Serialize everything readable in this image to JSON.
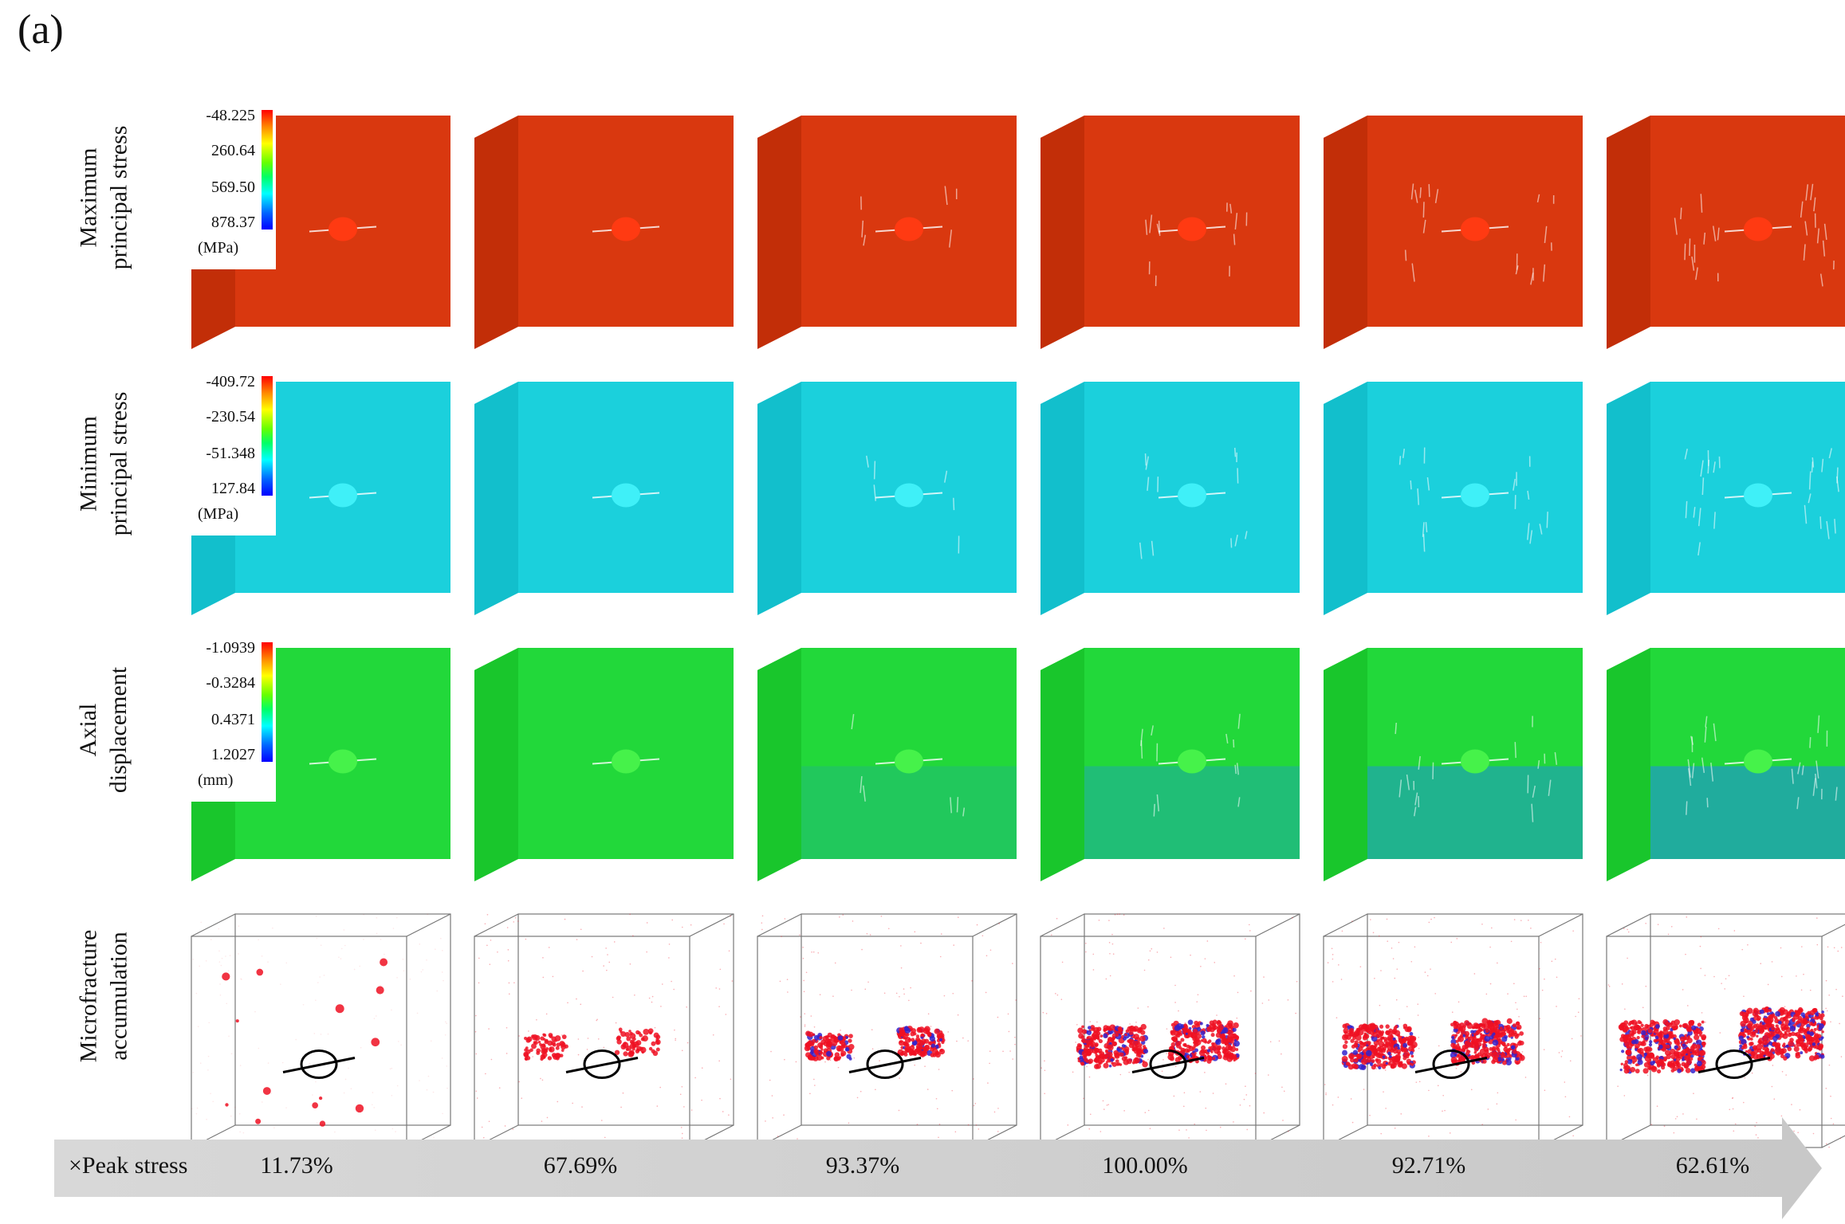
{
  "panel_label": "(a)",
  "stages": [
    "11.73%",
    "67.69%",
    "93.37%",
    "100.00%",
    "92.71%",
    "62.61%"
  ],
  "arrow_caption": "×Peak stress",
  "rows": [
    {
      "label_line1": "Maximum",
      "label_line2": "principal stress",
      "legend_values": [
        "-48.225",
        "260.64",
        "569.50",
        "878.37"
      ],
      "legend_unit": "(MPa)",
      "color_front": "#d9380f",
      "color_top": "#e84a14",
      "color_side": "#c22e08"
    },
    {
      "label_line1": "Minimum",
      "label_line2": "principal stress",
      "legend_values": [
        "-409.72",
        "-230.54",
        "-51.348",
        "127.84"
      ],
      "legend_unit": "(MPa)",
      "color_front": "#1bd0dc",
      "color_top": "#2be6f0",
      "color_side": "#12bfcc"
    },
    {
      "label_line1": "Axial",
      "label_line2": "displacement",
      "legend_values": [
        "-1.0939",
        "-0.3284",
        "0.4371",
        "1.2027"
      ],
      "legend_unit": "(mm)",
      "color_front": "#22d83a",
      "color_top": "#2af21e",
      "color_side": "#19c62c"
    },
    {
      "label_line1": "Microfracture",
      "label_line2": "accumulation",
      "color_crack": "#ee1122",
      "color_crack_shear": "#3322cc"
    }
  ]
}
